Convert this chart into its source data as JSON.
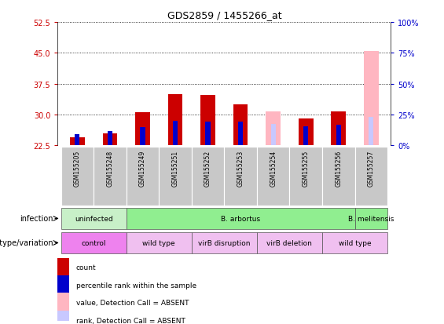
{
  "title": "GDS2859 / 1455266_at",
  "samples": [
    "GSM155205",
    "GSM155248",
    "GSM155249",
    "GSM155251",
    "GSM155252",
    "GSM155253",
    "GSM155254",
    "GSM155255",
    "GSM155256",
    "GSM155257"
  ],
  "ylim_left": [
    22.5,
    52.5
  ],
  "yticks_left": [
    22.5,
    30,
    37.5,
    45,
    52.5
  ],
  "ylim_right": [
    0,
    100
  ],
  "yticks_right": [
    0,
    25,
    50,
    75,
    100
  ],
  "bar_bottom": 22.5,
  "red_values": [
    24.5,
    25.5,
    30.5,
    35.0,
    34.8,
    32.5,
    0,
    29.0,
    30.8,
    0
  ],
  "blue_values": [
    25.3,
    26.0,
    27.0,
    28.5,
    28.2,
    28.2,
    0,
    27.2,
    27.5,
    0
  ],
  "pink_values": [
    0,
    0,
    0,
    0,
    0,
    0,
    30.8,
    0,
    0,
    45.5
  ],
  "lpink_values": [
    0,
    0,
    0,
    0,
    0,
    0,
    27.8,
    0,
    0,
    29.5
  ],
  "absent_mask": [
    false,
    false,
    false,
    false,
    false,
    false,
    true,
    false,
    false,
    true
  ],
  "color_red": "#cc0000",
  "color_blue": "#0000cc",
  "color_pink": "#ffb6c1",
  "color_lpink": "#c8c8ff",
  "grid_color": "black",
  "grid_style": "dotted",
  "bg_color": "white",
  "label_color_left": "#cc0000",
  "label_color_right": "#0000cc",
  "sample_bg_color": "#c8c8c8",
  "inf_groups": [
    {
      "label": "uninfected",
      "cols": [
        0,
        1
      ],
      "color": "#c8f0c8"
    },
    {
      "label": "B. arbortus",
      "cols": [
        2,
        3,
        4,
        5,
        6,
        7,
        8
      ],
      "color": "#90ee90"
    },
    {
      "label": "B. melitensis",
      "cols": [
        9
      ],
      "color": "#90ee90"
    }
  ],
  "gen_groups": [
    {
      "label": "control",
      "cols": [
        0,
        1
      ],
      "color": "#ee82ee"
    },
    {
      "label": "wild type",
      "cols": [
        2,
        3
      ],
      "color": "#f0c0f0"
    },
    {
      "label": "virB disruption",
      "cols": [
        4,
        5
      ],
      "color": "#f0c0f0"
    },
    {
      "label": "virB deletion",
      "cols": [
        6,
        7
      ],
      "color": "#f0c0f0"
    },
    {
      "label": "wild type",
      "cols": [
        8,
        9
      ],
      "color": "#f0c0f0"
    }
  ],
  "legend_items": [
    {
      "color": "#cc0000",
      "label": "count"
    },
    {
      "color": "#0000cc",
      "label": "percentile rank within the sample"
    },
    {
      "color": "#ffb6c1",
      "label": "value, Detection Call = ABSENT"
    },
    {
      "color": "#c8c8ff",
      "label": "rank, Detection Call = ABSENT"
    }
  ]
}
